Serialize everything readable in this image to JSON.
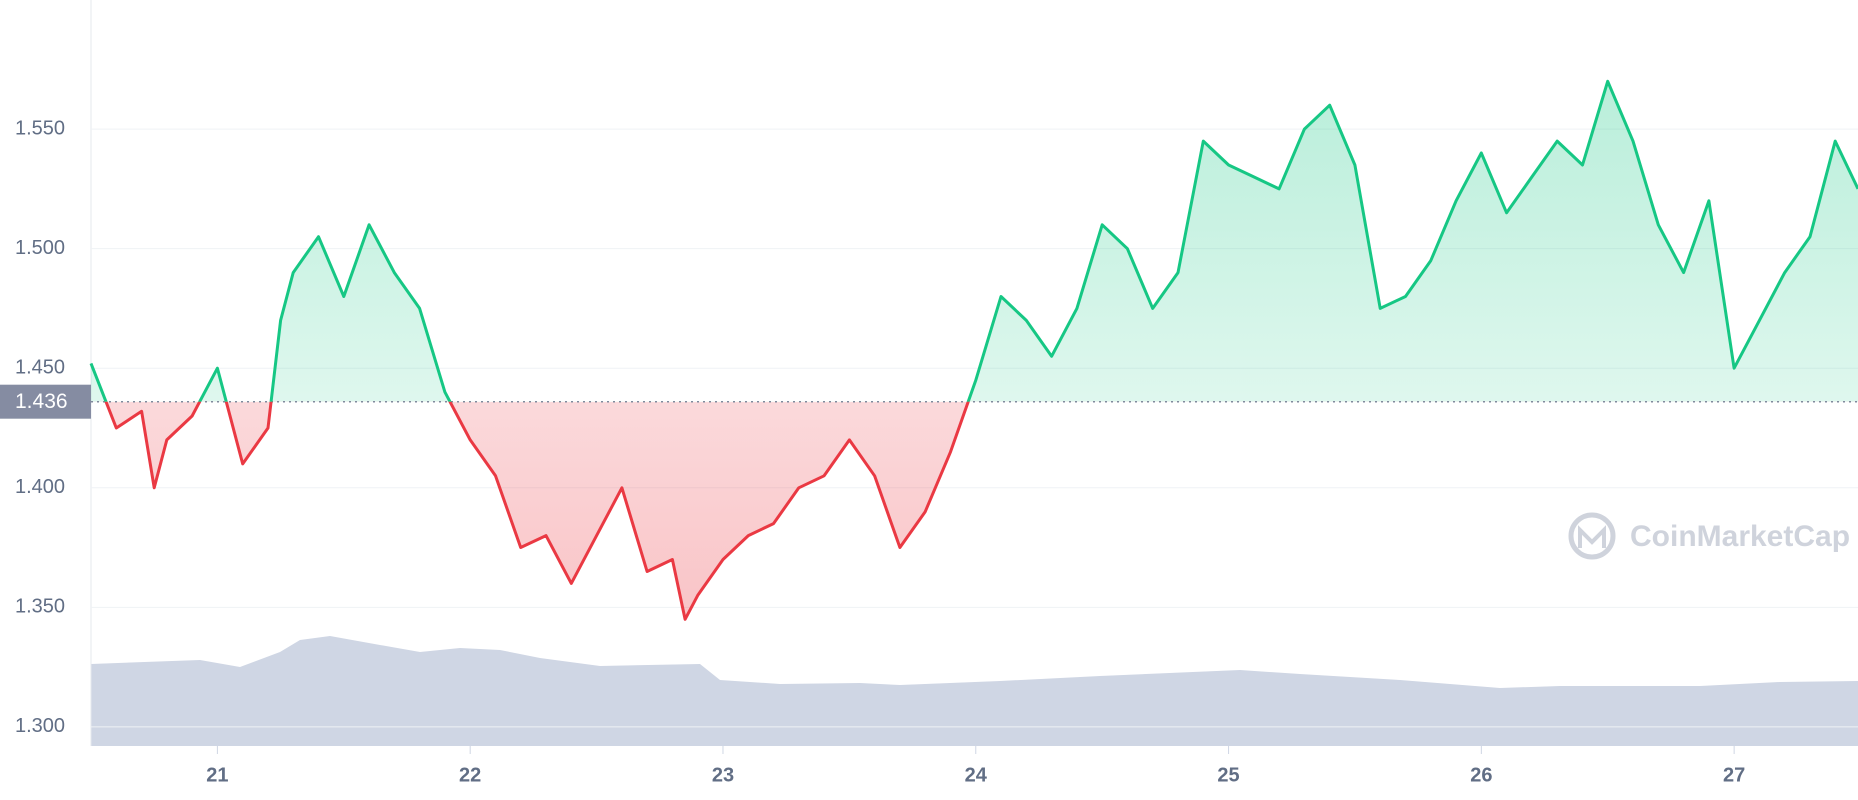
{
  "chart_data": {
    "type": "line",
    "x": [
      20.5,
      20.6,
      20.7,
      20.75,
      20.8,
      20.9,
      21.0,
      21.1,
      21.2,
      21.25,
      21.3,
      21.4,
      21.5,
      21.6,
      21.7,
      21.8,
      21.9,
      22.0,
      22.1,
      22.2,
      22.3,
      22.4,
      22.5,
      22.6,
      22.7,
      22.8,
      22.85,
      22.9,
      23.0,
      23.1,
      23.2,
      23.3,
      23.4,
      23.5,
      23.6,
      23.7,
      23.8,
      23.9,
      24.0,
      24.1,
      24.2,
      24.3,
      24.4,
      24.5,
      24.6,
      24.7,
      24.8,
      24.9,
      25.0,
      25.1,
      25.2,
      25.3,
      25.4,
      25.5,
      25.6,
      25.7,
      25.8,
      25.9,
      26.0,
      26.1,
      26.2,
      26.3,
      26.4,
      26.5,
      26.6,
      26.7,
      26.8,
      26.9,
      27.0,
      27.1,
      27.2,
      27.3,
      27.4,
      27.49
    ],
    "series": [
      {
        "values": [
          1.452,
          1.425,
          1.432,
          1.4,
          1.42,
          1.43,
          1.45,
          1.41,
          1.425,
          1.47,
          1.49,
          1.505,
          1.48,
          1.51,
          1.49,
          1.475,
          1.44,
          1.42,
          1.405,
          1.375,
          1.38,
          1.36,
          1.38,
          1.4,
          1.365,
          1.37,
          1.345,
          1.355,
          1.37,
          1.38,
          1.385,
          1.4,
          1.405,
          1.42,
          1.405,
          1.375,
          1.39,
          1.415,
          1.445,
          1.48,
          1.47,
          1.455,
          1.475,
          1.51,
          1.5,
          1.475,
          1.49,
          1.545,
          1.535,
          1.53,
          1.525,
          1.55,
          1.56,
          1.535,
          1.475,
          1.48,
          1.495,
          1.52,
          1.54,
          1.515,
          1.53,
          1.545,
          1.535,
          1.57,
          1.545,
          1.51,
          1.49,
          1.52,
          1.45,
          1.47,
          1.49,
          1.505,
          1.545,
          1.525
        ]
      }
    ],
    "baseline": 1.436,
    "up_color": "#16c784",
    "down_color": "#ea3943",
    "xlim": [
      20.5,
      27.49
    ],
    "xticks": [
      21,
      22,
      23,
      24,
      25,
      26,
      27
    ],
    "ylim": [
      1.292,
      1.604
    ],
    "yticks": [
      {
        "value": 1.3,
        "label": "1.300"
      },
      {
        "value": 1.35,
        "label": "1.350"
      },
      {
        "value": 1.4,
        "label": "1.400"
      },
      {
        "value": 1.45,
        "label": "1.450"
      },
      {
        "value": 1.5,
        "label": "1.500"
      },
      {
        "value": 1.55,
        "label": "1.550"
      }
    ],
    "grid": true,
    "watermark": "CoinMarketCap"
  }
}
